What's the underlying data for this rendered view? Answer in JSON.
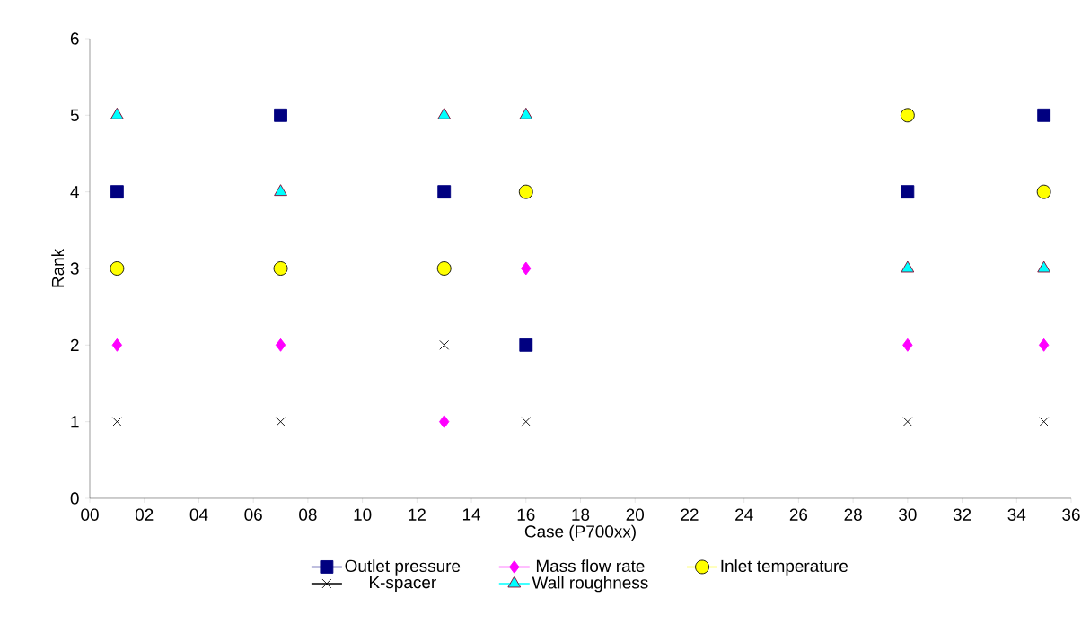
{
  "chart_data": {
    "type": "scatter",
    "xlabel": "Case (P700xx)",
    "ylabel": "Rank",
    "x": [
      1,
      7,
      13,
      16,
      30,
      35
    ],
    "xlim": [
      0,
      36
    ],
    "xticks": [
      {
        "value": 0,
        "label": "00"
      },
      {
        "value": 2,
        "label": "02"
      },
      {
        "value": 4,
        "label": "04"
      },
      {
        "value": 6,
        "label": "06"
      },
      {
        "value": 8,
        "label": "08"
      },
      10,
      12,
      14,
      16,
      18,
      20,
      22,
      24,
      26,
      28,
      30,
      32,
      34,
      36
    ],
    "ylim": [
      0,
      6
    ],
    "yticks": [
      0,
      1,
      2,
      3,
      4,
      5,
      6
    ],
    "legend": "bottom",
    "grid": false,
    "series": [
      {
        "name": "Outlet pressure",
        "color": "#000080",
        "marker": "square",
        "values": [
          4,
          5,
          4,
          2,
          4,
          5
        ]
      },
      {
        "name": "Mass flow rate",
        "color": "#ff00ff",
        "marker": "diamond",
        "values": [
          2,
          2,
          1,
          3,
          2,
          2
        ]
      },
      {
        "name": "Inlet temperature",
        "color": "#ffff00",
        "marker": "circle",
        "values": [
          3,
          3,
          3,
          4,
          5,
          4
        ]
      },
      {
        "name": "K-spacer",
        "color": "#000000",
        "marker": "cross",
        "values": [
          1,
          1,
          2,
          1,
          1,
          1
        ]
      },
      {
        "name": "Wall roughness",
        "color": "#00ffff",
        "marker": "triangle",
        "values": [
          5,
          4,
          5,
          5,
          3,
          3
        ]
      }
    ]
  }
}
